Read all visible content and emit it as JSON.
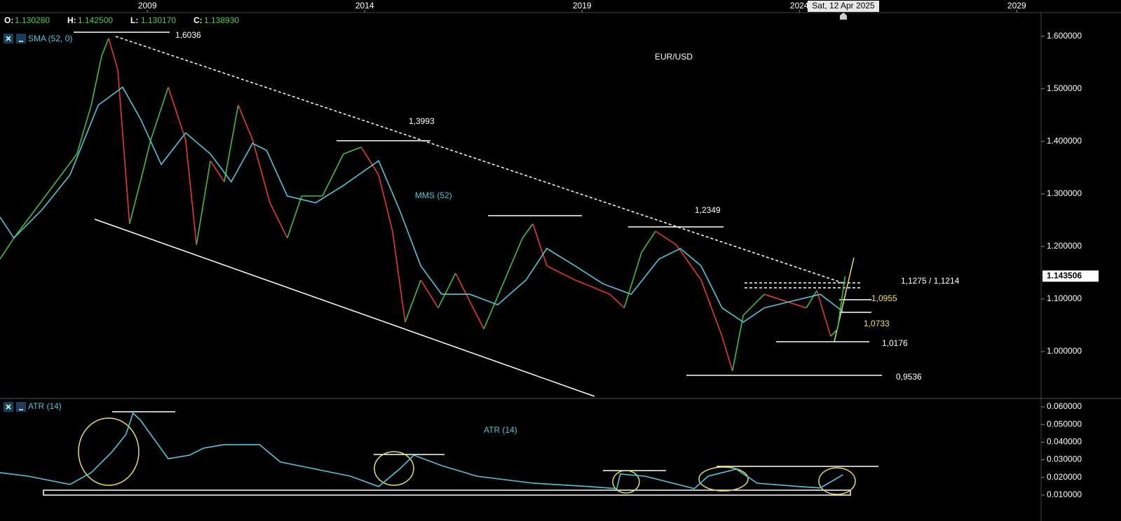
{
  "header": {
    "ohlc": [
      {
        "key": "O:",
        "value": "1.130280"
      },
      {
        "key": "H:",
        "value": "1.142500"
      },
      {
        "key": "L:",
        "value": "1.130170"
      },
      {
        "key": "C:",
        "value": "1.138930"
      }
    ],
    "crosshair_date": "Sat, 12 Apr 2025"
  },
  "chart_data": [
    {
      "type": "line",
      "title": "EUR/USD",
      "xlim": [
        2005.61,
        2029.56
      ],
      "xticks": [
        2009,
        2014,
        2019,
        2024,
        2029
      ],
      "ylim": [
        0.912,
        1.645
      ],
      "yticks": [
        {
          "value": 1.0,
          "label": "1.000000"
        },
        {
          "value": 1.1,
          "label": "1.100000"
        },
        {
          "value": 1.2,
          "label": "1.200000"
        },
        {
          "value": 1.3,
          "label": "1.300000"
        },
        {
          "value": 1.4,
          "label": "1.400000"
        },
        {
          "value": 1.5,
          "label": "1.500000"
        },
        {
          "value": 1.6,
          "label": "1.600000"
        }
      ],
      "last_price": {
        "value": 1.143506,
        "label": "1.143506"
      },
      "series": [
        {
          "up_color": "#3fbf3f",
          "down_color": "#e53935",
          "x": [
            2005.61,
            2005.93,
            2006.42,
            2006.9,
            2007.38,
            2007.71,
            2007.95,
            2008.11,
            2008.32,
            2008.59,
            2008.84,
            2009.08,
            2009.48,
            2009.88,
            2010.13,
            2010.45,
            2010.77,
            2011.09,
            2011.42,
            2011.82,
            2012.22,
            2012.55,
            2013.03,
            2013.51,
            2013.92,
            2014.32,
            2014.64,
            2014.93,
            2015.29,
            2015.69,
            2016.09,
            2016.74,
            2017.22,
            2017.63,
            2017.87,
            2018.19,
            2018.84,
            2019.64,
            2019.97,
            2020.37,
            2020.69,
            2021.17,
            2021.74,
            2022.22,
            2022.46,
            2022.71,
            2023.19,
            2023.67,
            2024.16,
            2024.4,
            2024.72,
            2024.88,
            2025.05
          ],
          "values": [
            1.176,
            1.216,
            1.27,
            1.323,
            1.376,
            1.469,
            1.563,
            1.596,
            1.536,
            1.243,
            1.323,
            1.403,
            1.503,
            1.403,
            1.203,
            1.363,
            1.323,
            1.469,
            1.403,
            1.283,
            1.216,
            1.296,
            1.296,
            1.376,
            1.389,
            1.336,
            1.229,
            1.056,
            1.136,
            1.083,
            1.149,
            1.043,
            1.136,
            1.216,
            1.243,
            1.163,
            1.136,
            1.109,
            1.083,
            1.189,
            1.229,
            1.203,
            1.136,
            1.029,
            0.963,
            1.069,
            1.109,
            1.096,
            1.083,
            1.116,
            1.029,
            1.043,
            1.143
          ]
        },
        {
          "name": "SMA (52, 0)",
          "color": "#4fc8dc",
          "x": [
            2005.61,
            2005.93,
            2006.58,
            2007.22,
            2007.87,
            2008.43,
            2008.84,
            2009.32,
            2009.88,
            2010.45,
            2010.93,
            2011.42,
            2011.74,
            2012.22,
            2012.87,
            2013.51,
            2014.32,
            2014.8,
            2015.29,
            2015.77,
            2016.42,
            2017.06,
            2017.71,
            2018.19,
            2018.84,
            2019.48,
            2020.13,
            2020.77,
            2021.26,
            2021.74,
            2022.22,
            2022.71,
            2023.19,
            2023.84,
            2024.48,
            2025.0
          ],
          "values": [
            1.256,
            1.216,
            1.27,
            1.336,
            1.469,
            1.503,
            1.443,
            1.356,
            1.416,
            1.376,
            1.323,
            1.396,
            1.383,
            1.296,
            1.283,
            1.316,
            1.363,
            1.27,
            1.163,
            1.109,
            1.109,
            1.089,
            1.136,
            1.196,
            1.163,
            1.129,
            1.109,
            1.176,
            1.196,
            1.163,
            1.083,
            1.056,
            1.083,
            1.096,
            1.109,
            1.076
          ]
        }
      ],
      "annotations": [
        "1,6036",
        "1,3993",
        "1,2349",
        "1,1275 / 1,1214",
        "1,0955",
        "1,0733",
        "1,0176",
        "0,9536",
        "MMS (52)"
      ]
    },
    {
      "type": "line",
      "xlim": [
        2005.61,
        2029.56
      ],
      "ylim": [
        0.004,
        0.0636
      ],
      "yticks": [
        {
          "value": 0.01,
          "label": "0.010000"
        },
        {
          "value": 0.02,
          "label": "0.020000"
        },
        {
          "value": 0.03,
          "label": "0.030000"
        },
        {
          "value": 0.04,
          "label": "0.040000"
        },
        {
          "value": 0.05,
          "label": "0.050000"
        },
        {
          "value": 0.06,
          "label": "0.060000"
        }
      ],
      "series": [
        {
          "name": "ATR (14)",
          "color": "#4fc8dc",
          "x": [
            2005.61,
            2006.26,
            2007.22,
            2007.71,
            2008.19,
            2008.51,
            2008.67,
            2008.84,
            2009.48,
            2009.97,
            2010.29,
            2010.77,
            2011.58,
            2012.06,
            2012.87,
            2013.67,
            2014.32,
            2014.8,
            2015.13,
            2015.77,
            2016.58,
            2017.87,
            2019.16,
            2019.8,
            2019.88,
            2020.45,
            2021.09,
            2021.58,
            2021.9,
            2022.55,
            2023.03,
            2024.0,
            2024.48,
            2025.0
          ],
          "values": [
            0.0227,
            0.0207,
            0.016,
            0.0227,
            0.0346,
            0.0445,
            0.0564,
            0.0525,
            0.0306,
            0.0326,
            0.0366,
            0.0386,
            0.0386,
            0.0287,
            0.0247,
            0.0207,
            0.0148,
            0.0247,
            0.0326,
            0.0267,
            0.0207,
            0.0167,
            0.0148,
            0.0136,
            0.0219,
            0.0207,
            0.0167,
            0.0136,
            0.0207,
            0.0247,
            0.0167,
            0.0148,
            0.014,
            0.0215
          ]
        }
      ],
      "annotations": [
        "ATR (14)"
      ]
    }
  ]
}
